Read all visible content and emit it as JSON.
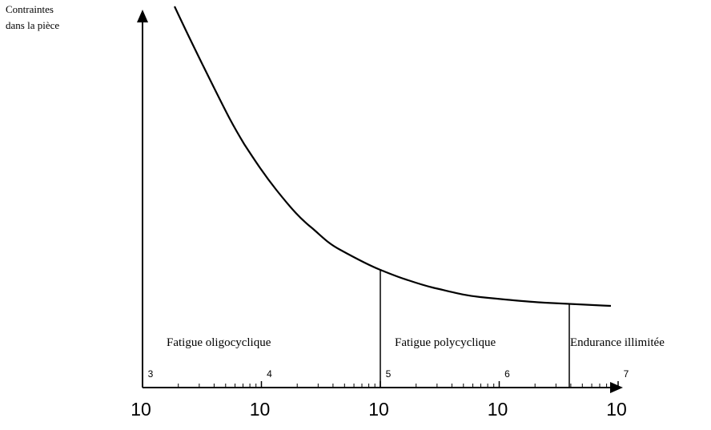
{
  "y_axis": {
    "label_lines": [
      "Contraintes",
      "dans la pièce"
    ]
  },
  "regions": [
    "Fatigue oligocyclique",
    "Fatigue polycyclique",
    "Endurance illimitée"
  ],
  "x_axis": {
    "ticks": [
      {
        "base": "10",
        "exponent": "3"
      },
      {
        "base": "10",
        "exponent": "4"
      },
      {
        "base": "10",
        "exponent": "5"
      },
      {
        "base": "10",
        "exponent": "6"
      },
      {
        "base": "10",
        "exponent": "7"
      }
    ]
  }
}
